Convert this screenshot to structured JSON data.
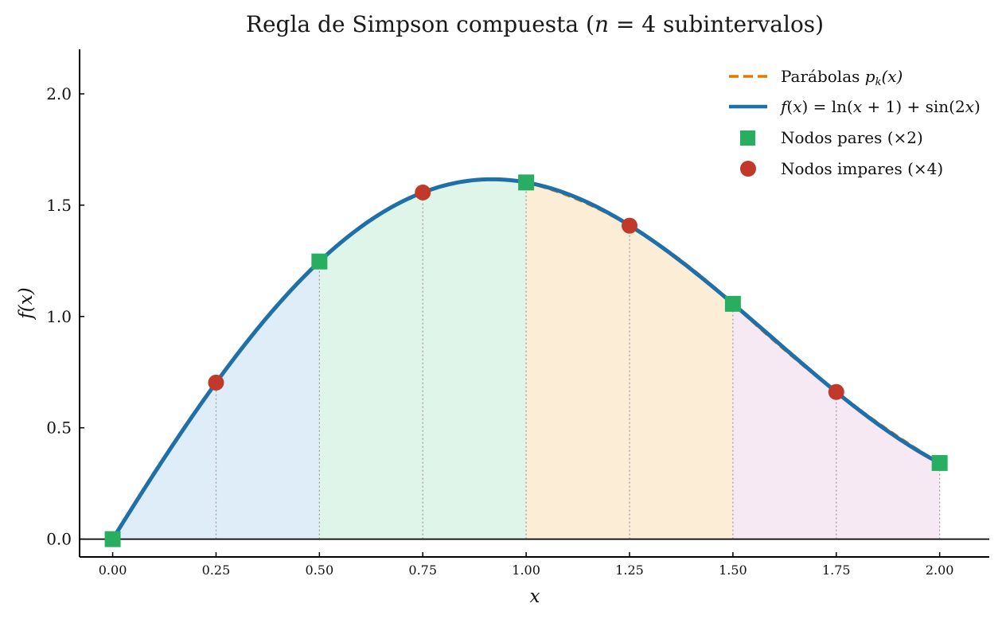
{
  "chart_data": {
    "type": "line",
    "title": "Regla de Simpson compuesta  (n = 4 subintervalos)",
    "xlabel": "x",
    "ylabel": "f(x)",
    "xlim": [
      -0.08,
      2.12
    ],
    "ylim": [
      -0.08,
      2.2
    ],
    "xticks": [
      0.0,
      0.25,
      0.5,
      0.75,
      1.0,
      1.25,
      1.5,
      1.75,
      2.0
    ],
    "xtick_labels": [
      "0.00",
      "0.25",
      "0.50",
      "0.75",
      "1.00",
      "1.25",
      "1.50",
      "1.75",
      "2.00"
    ],
    "yticks": [
      0.0,
      0.5,
      1.0,
      1.5,
      2.0
    ],
    "ytick_labels": [
      "0.0",
      "0.5",
      "1.0",
      "1.5",
      "2.0"
    ],
    "grid": false,
    "legend_position": "top-right",
    "legend": [
      "Parábolas p_k(x)",
      "f(x) = ln(x+1) + sin(2x)",
      "Nodos pares (×2)",
      "Nodos impares (×4)"
    ],
    "series": [
      {
        "name": "f(x) = ln(x+1) + sin(2x)",
        "x": [
          0.0,
          0.1,
          0.2,
          0.3,
          0.4,
          0.5,
          0.6,
          0.7,
          0.8,
          0.9,
          1.0,
          1.1,
          1.2,
          1.3,
          1.4,
          1.5,
          1.6,
          1.7,
          1.8,
          1.9,
          2.0
        ],
        "y": [
          0.0,
          0.294,
          0.571,
          0.827,
          1.053,
          1.247,
          1.402,
          1.516,
          1.588,
          1.616,
          1.602,
          1.55,
          1.464,
          1.349,
          1.211,
          1.057,
          0.894,
          0.729,
          0.57,
          0.424,
          0.342
        ]
      },
      {
        "name": "Nodos pares (×2)",
        "x": [
          0.0,
          0.5,
          1.0,
          1.5,
          2.0
        ],
        "y": [
          0.0,
          1.247,
          1.602,
          1.057,
          0.342
        ]
      },
      {
        "name": "Nodos impares (×4)",
        "x": [
          0.25,
          0.75,
          1.25,
          1.75
        ],
        "y": [
          0.703,
          1.557,
          1.408,
          0.661
        ]
      }
    ],
    "panels": [
      {
        "x0": 0.0,
        "x1": 0.5,
        "color": "#dfedf8"
      },
      {
        "x0": 0.5,
        "x1": 1.0,
        "color": "#dff5e9"
      },
      {
        "x0": 1.0,
        "x1": 1.5,
        "color": "#fcedd6"
      },
      {
        "x0": 1.5,
        "x1": 2.0,
        "color": "#f7e9f4"
      }
    ],
    "colors": {
      "curve": "#1f6fa9",
      "parabola": "#e07b00",
      "even_node": "#27ae60",
      "odd_node": "#c0392b",
      "node_line": "#999999"
    }
  }
}
